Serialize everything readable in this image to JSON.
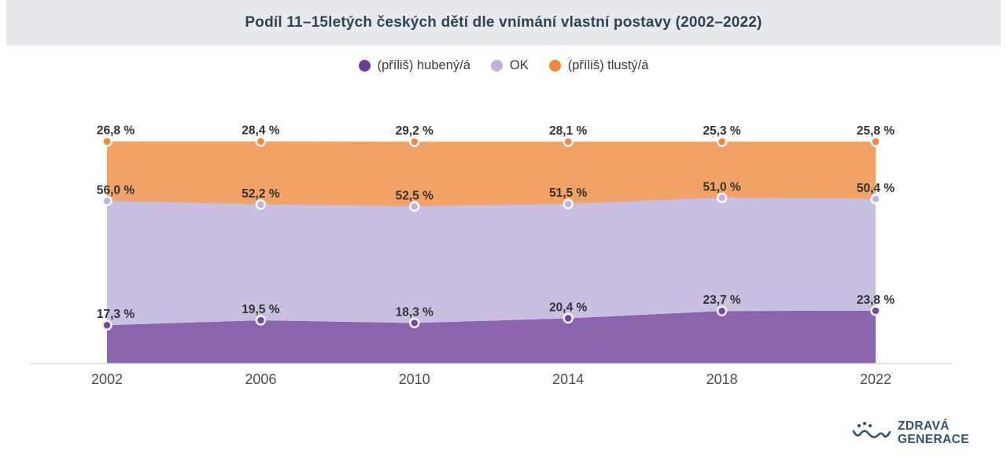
{
  "header": {
    "title": "Podíl 11–15letých českých dětí dle vnímání vlastní postavy (2002–2022)"
  },
  "legend": {
    "items": [
      {
        "label": "(příliš) hubený/á",
        "color": "#6a3d9c"
      },
      {
        "label": "OK",
        "color": "#c0b2da"
      },
      {
        "label": "(příliš) tlustý/á",
        "color": "#ee8a35"
      }
    ]
  },
  "chart_data": {
    "type": "area",
    "stacked": true,
    "stacking": "percent",
    "title": "Podíl 11–15letých českých dětí dle vnímání vlastní postavy (2002–2022)",
    "x": [
      2002,
      2006,
      2010,
      2014,
      2018,
      2022
    ],
    "series": [
      {
        "name": "(příliš) hubený/á",
        "color": "#8a64ad",
        "marker_color": "#7449a0",
        "values": [
          17.3,
          19.5,
          18.3,
          20.4,
          23.7,
          23.8
        ],
        "labels": [
          "17,3 %",
          "19,5 %",
          "18,3 %",
          "20,4 %",
          "23,7 %",
          "23,8 %"
        ]
      },
      {
        "name": "OK",
        "color": "#c9bfe0",
        "marker_color": "#c2b5dc",
        "values": [
          56.0,
          52.2,
          52.5,
          51.5,
          51.0,
          50.4
        ],
        "labels": [
          "56,0 %",
          "52,2 %",
          "52,5 %",
          "51,5 %",
          "51,0 %",
          "50,4 %"
        ]
      },
      {
        "name": "(příliš) tlustý/á",
        "color": "#f2a267",
        "marker_color": "#ed8a3d",
        "values": [
          26.8,
          28.4,
          29.2,
          28.1,
          25.3,
          25.8
        ],
        "labels": [
          "26,8 %",
          "28,4 %",
          "29,2 %",
          "28,1 %",
          "25,3 %",
          "25,8 %"
        ]
      }
    ],
    "xlabel": "",
    "ylabel": "",
    "ylim": [
      0,
      100
    ],
    "grid": false,
    "legend_position": "top",
    "value_label_color": "#333333",
    "axis_line_color": "#d9d9dc",
    "tick_label_color": "#4c4c4c"
  },
  "footer": {
    "logo": {
      "icon": "wave-smile-icon",
      "line1": "ZDRAVÁ",
      "line2": "GENERACE",
      "color": "#31506b"
    }
  }
}
